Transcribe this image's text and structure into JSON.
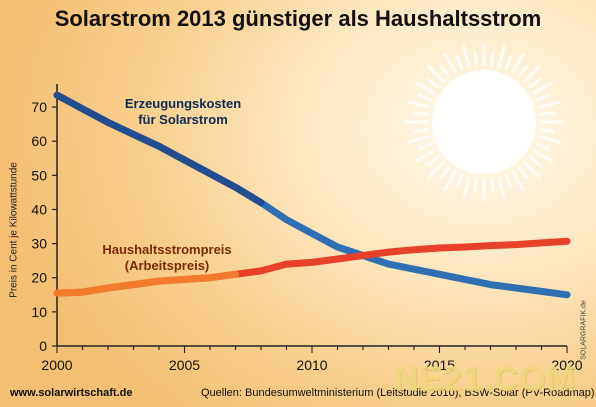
{
  "chart_data": {
    "type": "line",
    "title": "Solarstrom 2013 günstiger als Haushaltsstrom",
    "ylabel": "Preis in Cent je Kilowattstunde",
    "xlabel": "",
    "xlim": [
      2000,
      2020
    ],
    "ylim": [
      0,
      75
    ],
    "x_ticks": [
      "2000",
      "2005",
      "2010",
      "2015",
      "2020"
    ],
    "y_ticks": [
      "0",
      "10",
      "20",
      "30",
      "40",
      "50",
      "60",
      "70"
    ],
    "grid": false,
    "series": [
      {
        "name": "Erzeugungskosten für Solarstrom",
        "label_lines": [
          "Erzeugungskosten",
          "für Solarstrom"
        ],
        "color": "#2f6fb3",
        "x": [
          2000,
          2001,
          2002,
          2003,
          2004,
          2005,
          2006,
          2007,
          2008,
          2009,
          2010,
          2011,
          2012,
          2013,
          2014,
          2015,
          2016,
          2017,
          2018,
          2019,
          2020
        ],
        "y": [
          73.5,
          69.5,
          65.5,
          62,
          58.5,
          54.5,
          50.5,
          46.5,
          42,
          37,
          33,
          29,
          26.5,
          24,
          22.5,
          21,
          19.5,
          18,
          17,
          16,
          15
        ]
      },
      {
        "name": "Haushaltsstrompreis (Arbeitspreis)",
        "label_lines": [
          "Haushaltsstrompreis",
          "(Arbeitspreis)"
        ],
        "color": "#e8412a",
        "x": [
          2000,
          2001,
          2002,
          2003,
          2004,
          2005,
          2006,
          2007,
          2008,
          2009,
          2010,
          2011,
          2012,
          2013,
          2014,
          2015,
          2016,
          2017,
          2018,
          2019,
          2020
        ],
        "y": [
          15.5,
          15.8,
          17,
          18,
          19,
          19.5,
          20,
          21,
          22,
          24,
          24.5,
          25.5,
          26.5,
          27.5,
          28.2,
          28.7,
          29,
          29.4,
          29.7,
          30.2,
          30.7
        ]
      }
    ]
  },
  "footer": {
    "url": "www.solarwirtschaft.de",
    "source": "Quellen: Bundesumweltministerium (Leitstudie 2010), BSW-Solar (PV-Roadmap)"
  },
  "credit": "SOLARGRAFIK.de",
  "watermark": "NE21.COM"
}
